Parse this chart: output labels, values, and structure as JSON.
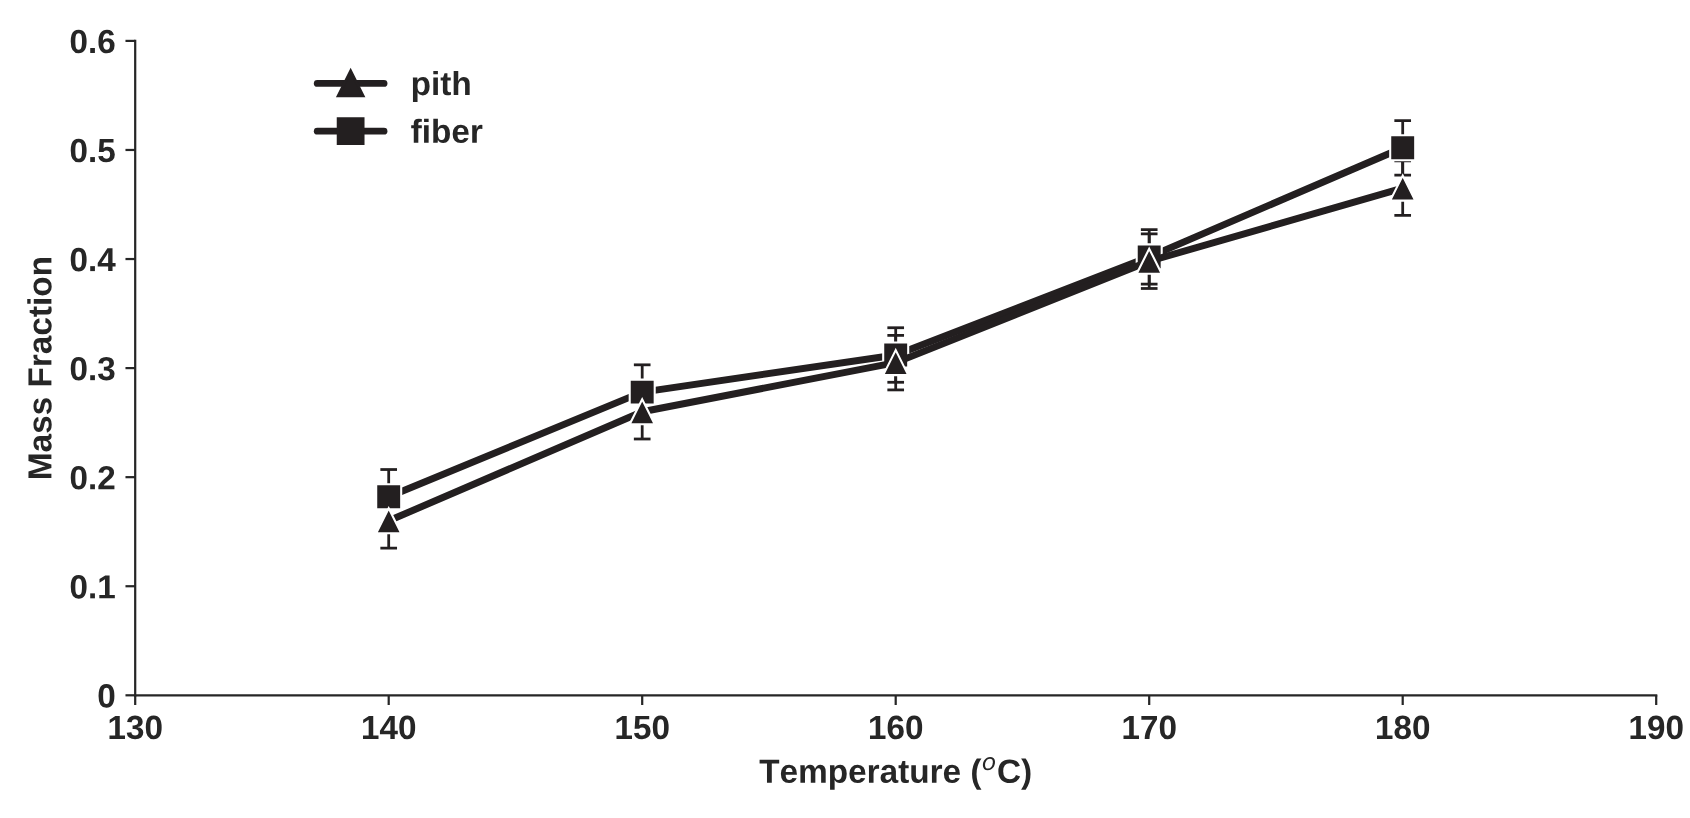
{
  "chart_data": {
    "type": "line",
    "xlabel": "Temperature ($^{o}$C)",
    "ylabel": "Mass Fraction",
    "x": [
      140,
      150,
      160,
      170,
      180
    ],
    "series": [
      {
        "name": "pith",
        "color": "#231f20",
        "marker": "triangle",
        "values": [
          0.16,
          0.26,
          0.305,
          0.398,
          0.465
        ],
        "errors": [
          0.025,
          0.025,
          0.025,
          0.025,
          0.025
        ]
      },
      {
        "name": "fiber",
        "color": "#231f20",
        "marker": "square",
        "values": [
          0.182,
          0.278,
          0.312,
          0.402,
          0.502
        ],
        "errors": [
          0.025,
          0.025,
          0.025,
          0.025,
          0.025
        ]
      }
    ],
    "xlim": [
      130,
      190
    ],
    "xticks": [
      130,
      140,
      150,
      160,
      170,
      180,
      190
    ],
    "ylim": [
      0,
      0.6
    ],
    "yticks": [
      0,
      0.1,
      0.2,
      0.3,
      0.4,
      0.5,
      0.6
    ],
    "legend": "top left",
    "grid": false,
    "line_style": "solid"
  }
}
